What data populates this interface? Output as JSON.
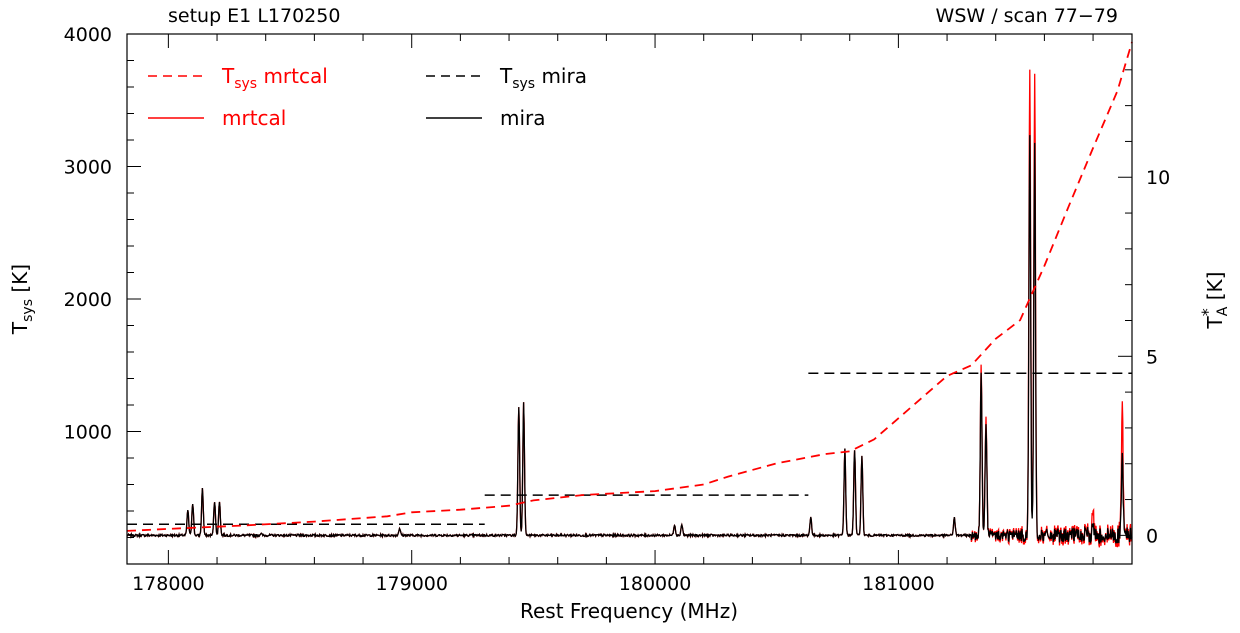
{
  "header": {
    "left": "setup E1 L170250",
    "right": "WSW / scan 77−79"
  },
  "colors": {
    "mrtcal": "#ff0000",
    "mira": "#000000"
  },
  "chart_data": {
    "type": "line",
    "xlabel": "Rest Frequency (MHz)",
    "ylabel_left": {
      "base": "T",
      "sub": "sys",
      "unit": " [K]"
    },
    "ylabel_right": {
      "base": "T",
      "sup": "*",
      "sub": "A",
      "unit": " [K]"
    },
    "xlim": [
      177830,
      181960
    ],
    "ylim_left": [
      0,
      4000
    ],
    "ylim_right": [
      -0.8,
      14
    ],
    "x_ticks": [
      178000,
      179000,
      180000,
      181000
    ],
    "x_tick_labels": [
      "178000",
      "179000",
      "180000",
      "181000"
    ],
    "y_left_ticks": [
      1000,
      2000,
      3000,
      4000
    ],
    "y_left_tick_labels": [
      "1000",
      "2000",
      "3000",
      "4000"
    ],
    "y_right_ticks": [
      0,
      5,
      10
    ],
    "y_right_tick_labels": [
      "0",
      "5",
      "10"
    ],
    "legend": {
      "placement": "top-left",
      "entries": [
        {
          "base": "T",
          "sub": "sys",
          "text": " mrtcal",
          "series": "tsys_mrtcal"
        },
        {
          "base": "",
          "sub": "",
          "text": "mrtcal",
          "series": "spec_mrtcal"
        },
        {
          "base": "T",
          "sub": "sys",
          "text": " mira",
          "series": "tsys_mira"
        },
        {
          "base": "",
          "sub": "",
          "text": "mira",
          "series": "spec_mira"
        }
      ]
    },
    "series": [
      {
        "id": "tsys_mrtcal",
        "style": "dashed",
        "color": "#ff0000",
        "axis": "left",
        "x": [
          177830,
          178000,
          178300,
          178600,
          178900,
          179000,
          179200,
          179400,
          179500,
          179700,
          180000,
          180200,
          180300,
          180500,
          180700,
          180800,
          180900,
          181000,
          181100,
          181200,
          181300,
          181400,
          181500,
          181600,
          181700,
          181800,
          181900,
          181960
        ],
        "y": [
          250,
          265,
          290,
          320,
          360,
          390,
          410,
          440,
          480,
          520,
          550,
          600,
          660,
          760,
          830,
          850,
          940,
          1100,
          1260,
          1420,
          1500,
          1700,
          1840,
          2250,
          2700,
          3140,
          3570,
          3940
        ]
      },
      {
        "id": "tsys_mira",
        "style": "dashed",
        "color": "#000000",
        "axis": "left",
        "segments": [
          {
            "x": [
              177830,
              179300
            ],
            "y": [
              300,
              300
            ]
          },
          {
            "x": [
              179300,
              180630
            ],
            "y": [
              520,
              520
            ]
          },
          {
            "x": [
              180630,
              181960
            ],
            "y": [
              1440,
              1440
            ]
          }
        ]
      },
      {
        "id": "spec_mrtcal",
        "style": "solid",
        "color": "#ff0000",
        "axis": "right",
        "baseline": 0.0,
        "noise_start": 181300,
        "noise_amplitude": 0.18,
        "features": [
          {
            "x": 178080,
            "h": 0.7
          },
          {
            "x": 178100,
            "h": 0.9
          },
          {
            "x": 178140,
            "h": 1.3
          },
          {
            "x": 178190,
            "h": 0.95
          },
          {
            "x": 178210,
            "h": 0.95
          },
          {
            "x": 178380,
            "h": 0.05
          },
          {
            "x": 178950,
            "h": 0.2
          },
          {
            "x": 179440,
            "h": 3.6
          },
          {
            "x": 179460,
            "h": 3.7
          },
          {
            "x": 180080,
            "h": 0.3
          },
          {
            "x": 180110,
            "h": 0.3
          },
          {
            "x": 180640,
            "h": 0.5
          },
          {
            "x": 180780,
            "h": 2.4
          },
          {
            "x": 180820,
            "h": 2.4
          },
          {
            "x": 180850,
            "h": 2.2
          },
          {
            "x": 181230,
            "h": 0.5
          },
          {
            "x": 181340,
            "h": 4.7
          },
          {
            "x": 181360,
            "h": 3.3
          },
          {
            "x": 181540,
            "h": 12.9
          },
          {
            "x": 181560,
            "h": 12.8
          },
          {
            "x": 181800,
            "h": 0.7
          },
          {
            "x": 181920,
            "h": 3.6
          }
        ]
      },
      {
        "id": "spec_mira",
        "style": "solid",
        "color": "#000000",
        "axis": "right",
        "baseline": 0.0,
        "noise_start": 181300,
        "noise_amplitude": 0.12,
        "features": [
          {
            "x": 178080,
            "h": 0.7
          },
          {
            "x": 178100,
            "h": 0.9
          },
          {
            "x": 178140,
            "h": 1.3
          },
          {
            "x": 178190,
            "h": 0.95
          },
          {
            "x": 178210,
            "h": 0.95
          },
          {
            "x": 178380,
            "h": 0.05
          },
          {
            "x": 178950,
            "h": 0.2
          },
          {
            "x": 179440,
            "h": 3.6
          },
          {
            "x": 179460,
            "h": 3.7
          },
          {
            "x": 180080,
            "h": 0.3
          },
          {
            "x": 180110,
            "h": 0.3
          },
          {
            "x": 180640,
            "h": 0.5
          },
          {
            "x": 180780,
            "h": 2.4
          },
          {
            "x": 180820,
            "h": 2.4
          },
          {
            "x": 180850,
            "h": 2.2
          },
          {
            "x": 181230,
            "h": 0.5
          },
          {
            "x": 181340,
            "h": 4.5
          },
          {
            "x": 181360,
            "h": 3.1
          },
          {
            "x": 181540,
            "h": 11.1
          },
          {
            "x": 181560,
            "h": 10.9
          },
          {
            "x": 181800,
            "h": 0.3
          },
          {
            "x": 181920,
            "h": 2.2
          }
        ]
      }
    ]
  }
}
